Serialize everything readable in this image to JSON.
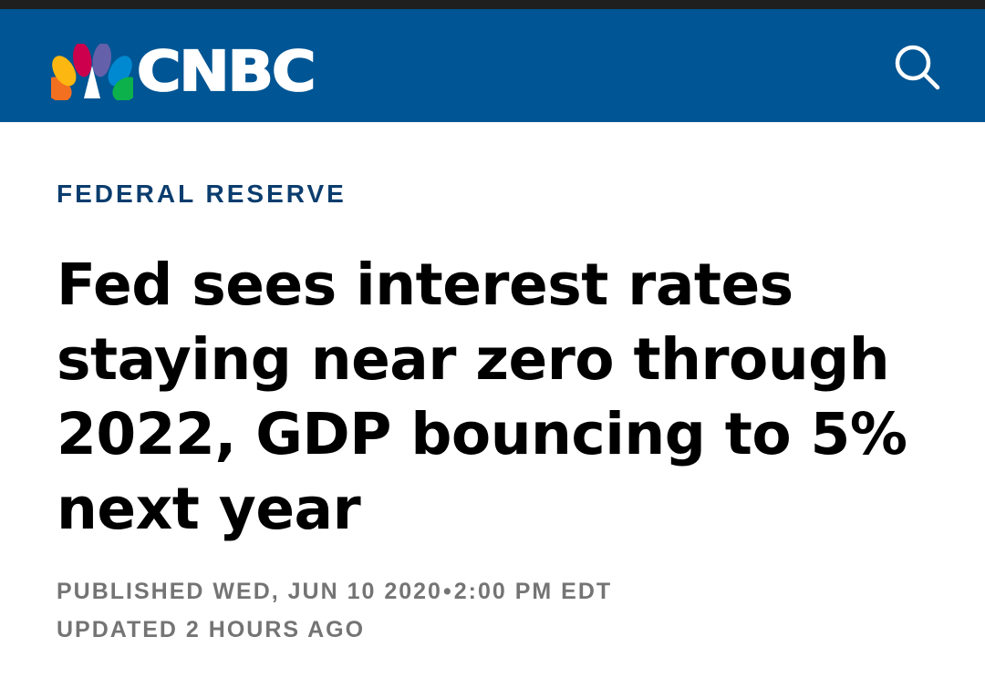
{
  "header": {
    "brand": "CNBC",
    "background_color": "#005594",
    "search_icon": "search-icon"
  },
  "article": {
    "section": "FEDERAL RESERVE",
    "section_color": "#0b3d6e",
    "headline": "Fed sees interest rates staying near zero through 2022, GDP bouncing to 5% next year",
    "published_prefix": "PUBLISHED",
    "published_date": "WED, JUN 10 2020",
    "separator": "•",
    "published_time": "2:00 PM EDT",
    "updated": "UPDATED 2 HOURS AGO",
    "meta_color": "#747474"
  }
}
